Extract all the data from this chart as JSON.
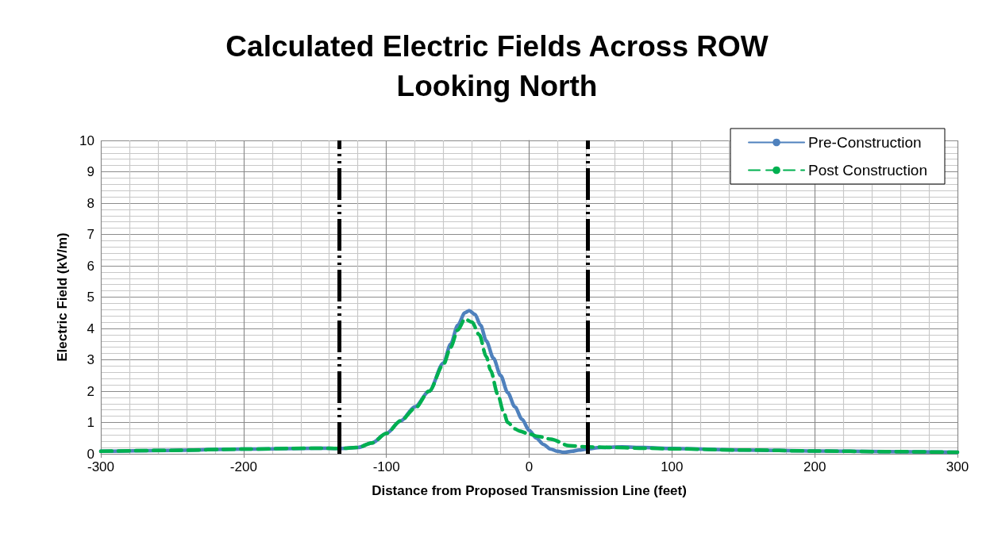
{
  "chart_data": {
    "type": "line",
    "title": "Calculated Electric Fields Across ROW\nLooking North",
    "xlabel": "Distance from Proposed Transmission Line (feet)",
    "ylabel": "Electric Field (kV/m)",
    "xlim": [
      -300,
      300
    ],
    "xticks": [
      -300,
      -200,
      -100,
      0,
      100,
      200,
      300
    ],
    "ylim": [
      0,
      10
    ],
    "yticks": [
      0,
      1,
      2,
      3,
      4,
      5,
      6,
      7,
      8,
      9,
      10
    ],
    "grid": true,
    "legend": "top right",
    "marker": "none",
    "series": [
      {
        "name": "Pre-Construction",
        "color": "#4f81bd",
        "line_style": "solid",
        "x": [
          -300,
          -250,
          -200,
          -150,
          -133,
          -120,
          -110,
          -100,
          -90,
          -80,
          -70,
          -60,
          -55,
          -50,
          -45,
          -42,
          -38,
          -34,
          -30,
          -25,
          -20,
          -15,
          -10,
          -5,
          0,
          5,
          10,
          15,
          20,
          24,
          30,
          35,
          40,
          50,
          65,
          80,
          100,
          150,
          200,
          250,
          300
        ],
        "values": [
          0.08,
          0.11,
          0.15,
          0.18,
          0.17,
          0.2,
          0.35,
          0.65,
          1.05,
          1.5,
          2.0,
          2.9,
          3.5,
          4.1,
          4.5,
          4.57,
          4.45,
          4.1,
          3.6,
          3.05,
          2.5,
          1.95,
          1.5,
          1.1,
          0.75,
          0.5,
          0.3,
          0.15,
          0.08,
          0.05,
          0.08,
          0.12,
          0.15,
          0.2,
          0.22,
          0.2,
          0.17,
          0.12,
          0.09,
          0.07,
          0.05
        ]
      },
      {
        "name": "Post Construction",
        "color": "#00b050",
        "line_style": "dashed",
        "x": [
          -300,
          -250,
          -200,
          -150,
          -133,
          -120,
          -110,
          -100,
          -90,
          -80,
          -70,
          -60,
          -55,
          -50,
          -45,
          -40,
          -35,
          -30,
          -27,
          -22,
          -18,
          -15,
          -10,
          -7,
          0,
          6,
          15,
          28,
          41,
          60,
          80,
          100,
          150,
          200,
          250,
          300
        ],
        "values": [
          0.08,
          0.11,
          0.15,
          0.18,
          0.17,
          0.2,
          0.35,
          0.65,
          1.05,
          1.45,
          2.0,
          2.85,
          3.4,
          3.95,
          4.3,
          4.2,
          3.8,
          3.1,
          2.66,
          1.9,
          1.35,
          1.0,
          0.8,
          0.73,
          0.63,
          0.56,
          0.47,
          0.26,
          0.22,
          0.2,
          0.18,
          0.16,
          0.12,
          0.09,
          0.07,
          0.05
        ]
      }
    ],
    "ref_lines": [
      {
        "axis": "x",
        "value": -133,
        "color": "#000000",
        "line_style": "dashed"
      },
      {
        "axis": "x",
        "value": 41,
        "color": "#000000",
        "line_style": "dashed"
      }
    ]
  }
}
